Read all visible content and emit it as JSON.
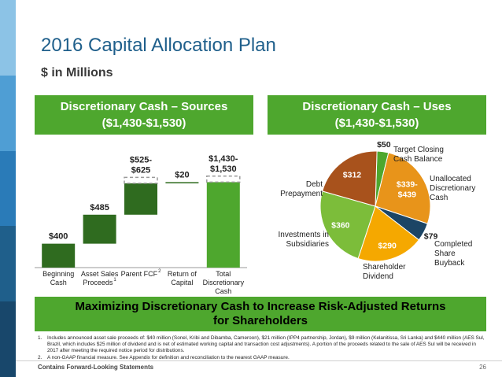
{
  "title": "2016 Capital Allocation Plan",
  "subtitle": "$ in Millions",
  "colors": {
    "green": "#4ea72e",
    "dark_green": "#2f6b1f",
    "title_blue": "#1f5f8b"
  },
  "left_band_colors": [
    "#8cc3e6",
    "#4f9ed4",
    "#2a7bb8",
    "#1f5f8b",
    "#18476b"
  ],
  "sources_header": {
    "line1": "Discretionary Cash – Sources",
    "line2": "($1,430-$1,530)"
  },
  "uses_header": {
    "line1": "Discretionary Cash – Uses",
    "line2": "($1,430-$1,530)"
  },
  "banner": {
    "line1": "Maximizing Discretionary Cash to Increase Risk-Adjusted Returns",
    "line2": "for Shareholders"
  },
  "footnotes": [
    {
      "num": "1.",
      "text": "Includes announced asset sale proceeds of: $40 million (Sonel, Kribi and Dibamba, Cameroon), $21 million (IPP4 partnership, Jordan), $9 million (Kelanitissa, Sri Lanka) and $440 million (AES Sul, Brazil, which includes $25 million of dividend and is net of estimated working capital and transaction cost adjustments). A portion of the proceeds related to the sale of AES Sul will be received in 2017 after meeting the required notice period for distributions."
    },
    {
      "num": "2.",
      "text": "A non-GAAP financial measure. See Appendix for definition and reconciliation to the nearest GAAP measure."
    }
  ],
  "footer": {
    "left": "Contains Forward-Looking Statements",
    "page": "26"
  },
  "chart_data": [
    {
      "type": "bar",
      "subtype": "waterfall",
      "categories": [
        {
          "lines": [
            "Beginning",
            "Cash"
          ],
          "sup": ""
        },
        {
          "lines": [
            "Asset Sales",
            "Proceeds"
          ],
          "sup": "1"
        },
        {
          "lines": [
            "Parent FCF"
          ],
          "sup": "2"
        },
        {
          "lines": [
            "Return of",
            "Capital"
          ],
          "sup": ""
        },
        {
          "lines": [
            "Total",
            "Discretionary",
            "Cash"
          ],
          "sup": ""
        }
      ],
      "bars": [
        {
          "label": [
            "$400"
          ],
          "base": 0,
          "low": 400,
          "high": 400,
          "total": false
        },
        {
          "label": [
            "$485"
          ],
          "base": 400,
          "low": 485,
          "high": 485,
          "total": false
        },
        {
          "label": [
            "$525-",
            "$625"
          ],
          "base": 885,
          "low": 525,
          "high": 625,
          "total": false
        },
        {
          "label": [
            "$20"
          ],
          "base": 1410,
          "low": 20,
          "high": 20,
          "total": false
        },
        {
          "label": [
            "$1,430-",
            "$1,530"
          ],
          "base": 0,
          "low": 1430,
          "high": 1530,
          "total": true
        }
      ],
      "ylim": [
        0,
        1580
      ]
    },
    {
      "type": "pie",
      "slices": [
        {
          "value_label": "$50",
          "value": 50,
          "name": [
            "Target Closing",
            "Cash Balance"
          ],
          "color": "#4ea72e"
        },
        {
          "value_label": "$339-$439",
          "value": 389,
          "name": [
            "Unallocated",
            "Discretionary",
            "Cash"
          ],
          "color": "#e8941a"
        },
        {
          "value_label": "$79",
          "value": 79,
          "name": [
            "Completed",
            "Share",
            "Buyback"
          ],
          "color": "#1c4565"
        },
        {
          "value_label": "$290",
          "value": 290,
          "name": [
            "Shareholder",
            "Dividend"
          ],
          "color": "#f5a800"
        },
        {
          "value_label": "$360",
          "value": 360,
          "name": [
            "Investments in",
            "Subsidiaries"
          ],
          "color": "#7cbd3a"
        },
        {
          "value_label": "$312",
          "value": 312,
          "name": [
            "Debt",
            "Prepayment"
          ],
          "color": "#a8521c"
        }
      ]
    }
  ]
}
